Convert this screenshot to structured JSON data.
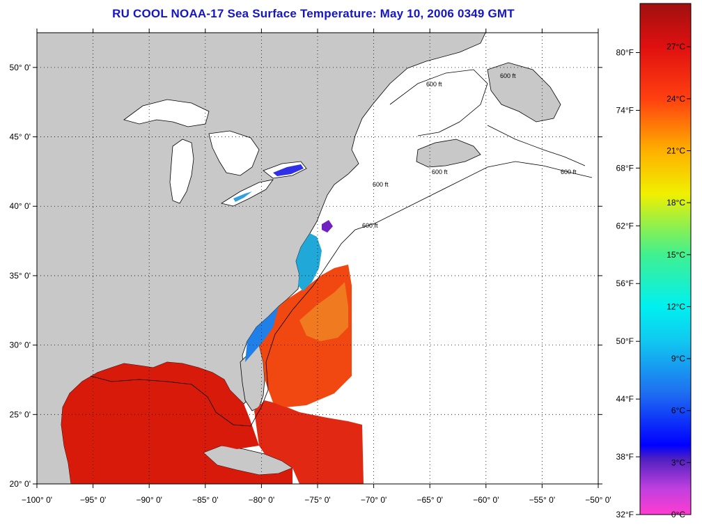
{
  "title": "RU COOL  NOAA-17  Sea Surface Temperature:  May 10, 2006 0349 GMT",
  "map": {
    "lon_range": [
      -100,
      -50
    ],
    "lat_range": [
      20,
      52.5
    ],
    "lon_ticks": [
      {
        "value": -100,
        "label": "−100° 0'"
      },
      {
        "value": -95,
        "label": "−95° 0'"
      },
      {
        "value": -90,
        "label": "−90° 0'"
      },
      {
        "value": -85,
        "label": "−85° 0'"
      },
      {
        "value": -80,
        "label": "−80° 0'"
      },
      {
        "value": -75,
        "label": "−75° 0'"
      },
      {
        "value": -70,
        "label": "−70° 0'"
      },
      {
        "value": -65,
        "label": "−65° 0'"
      },
      {
        "value": -60,
        "label": "−60° 0'"
      },
      {
        "value": -55,
        "label": "−55° 0'"
      },
      {
        "value": -50,
        "label": "−50° 0'"
      }
    ],
    "lat_ticks": [
      {
        "value": 20,
        "label": "20° 0'"
      },
      {
        "value": 25,
        "label": "25° 0'"
      },
      {
        "value": 30,
        "label": "30° 0'"
      },
      {
        "value": 35,
        "label": "35° 0'"
      },
      {
        "value": 40,
        "label": "40° 0'"
      },
      {
        "value": 45,
        "label": "45° 0'"
      },
      {
        "value": 50,
        "label": "50° 0'"
      }
    ],
    "isobath_label": "600 ft",
    "colors": {
      "land": "#c8c8c8",
      "frame": "#000000",
      "sst_gulf": "#d81a0a",
      "sst_stream": "#f04010",
      "sst_shelf": "#f08020",
      "sst_cold": "#20a0e0"
    }
  },
  "colorbar": {
    "celsius_labels": [
      {
        "value": 27,
        "label": "27°C"
      },
      {
        "value": 24,
        "label": "24°C"
      },
      {
        "value": 21,
        "label": "21°C"
      },
      {
        "value": 18,
        "label": "18°C"
      },
      {
        "value": 15,
        "label": "15°C"
      },
      {
        "value": 12,
        "label": "12°C"
      },
      {
        "value": 9,
        "label": "9°C"
      },
      {
        "value": 6,
        "label": "6°C"
      },
      {
        "value": 3,
        "label": "3°C"
      },
      {
        "value": 0,
        "label": "0°C"
      }
    ],
    "fahrenheit_labels": [
      {
        "value": 80,
        "label": "80°F"
      },
      {
        "value": 74,
        "label": "74°F"
      },
      {
        "value": 68,
        "label": "68°F"
      },
      {
        "value": 62,
        "label": "62°F"
      },
      {
        "value": 56,
        "label": "56°F"
      },
      {
        "value": 50,
        "label": "50°F"
      },
      {
        "value": 44,
        "label": "44°F"
      },
      {
        "value": 38,
        "label": "38°F"
      },
      {
        "value": 32,
        "label": "32°F"
      }
    ],
    "range_celsius": [
      0,
      29.5
    ],
    "stops": [
      {
        "c": 0,
        "color": "#ff3cd0"
      },
      {
        "c": 1.5,
        "color": "#c040e0"
      },
      {
        "c": 3.2,
        "color": "#5020c0"
      },
      {
        "c": 4,
        "color": "#0000ff"
      },
      {
        "c": 7,
        "color": "#1e6ef0"
      },
      {
        "c": 10,
        "color": "#10c8f0"
      },
      {
        "c": 12,
        "color": "#00f0f0"
      },
      {
        "c": 15,
        "color": "#40f090"
      },
      {
        "c": 17,
        "color": "#a0f040"
      },
      {
        "c": 18.5,
        "color": "#f0f000"
      },
      {
        "c": 21,
        "color": "#ffb000"
      },
      {
        "c": 24,
        "color": "#ff4010"
      },
      {
        "c": 27,
        "color": "#e01010"
      },
      {
        "c": 29.5,
        "color": "#a01010"
      }
    ]
  }
}
